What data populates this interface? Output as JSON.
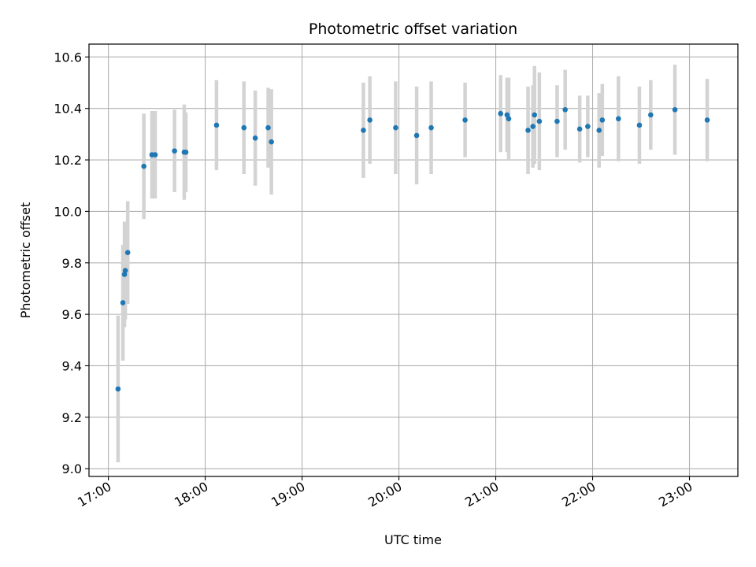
{
  "chart_data": {
    "type": "scatter",
    "title": "Photometric offset variation",
    "xlabel": "UTC time",
    "ylabel": "Photometric offset",
    "xlim": [
      "16:48",
      "23:30"
    ],
    "ylim": [
      8.97,
      10.65
    ],
    "x_ticks": [
      "17:00",
      "18:00",
      "19:00",
      "20:00",
      "21:00",
      "22:00",
      "23:00"
    ],
    "y_ticks": [
      "9.0",
      "9.2",
      "9.4",
      "9.6",
      "9.8",
      "10.0",
      "10.2",
      "10.4",
      "10.6"
    ],
    "grid": true,
    "error_bars": true,
    "colors": {
      "points": "#1f77b4",
      "error_bars": "#d3d3d3",
      "grid": "#b0b0b0"
    },
    "points": [
      {
        "x": "17:06",
        "y": 9.31,
        "err": 0.285
      },
      {
        "x": "17:09",
        "y": 9.645,
        "err": 0.225
      },
      {
        "x": "17:10",
        "y": 9.755,
        "err": 0.205
      },
      {
        "x": "17:10.5",
        "y": 9.77,
        "err": 0.19
      },
      {
        "x": "17:12",
        "y": 9.84,
        "err": 0.2
      },
      {
        "x": "17:22",
        "y": 10.175,
        "err": 0.205
      },
      {
        "x": "17:27",
        "y": 10.22,
        "err": 0.17
      },
      {
        "x": "17:29",
        "y": 10.22,
        "err": 0.17
      },
      {
        "x": "17:41",
        "y": 10.235,
        "err": 0.16
      },
      {
        "x": "17:47",
        "y": 10.23,
        "err": 0.185
      },
      {
        "x": "17:48",
        "y": 10.23,
        "err": 0.155
      },
      {
        "x": "18:07",
        "y": 10.335,
        "err": 0.175
      },
      {
        "x": "18:24",
        "y": 10.325,
        "err": 0.18
      },
      {
        "x": "18:31",
        "y": 10.285,
        "err": 0.185
      },
      {
        "x": "18:39",
        "y": 10.325,
        "err": 0.155
      },
      {
        "x": "18:41",
        "y": 10.27,
        "err": 0.205
      },
      {
        "x": "19:38",
        "y": 10.315,
        "err": 0.185
      },
      {
        "x": "19:42",
        "y": 10.355,
        "err": 0.17
      },
      {
        "x": "19:58",
        "y": 10.325,
        "err": 0.18
      },
      {
        "x": "20:11",
        "y": 10.295,
        "err": 0.19
      },
      {
        "x": "20:20",
        "y": 10.325,
        "err": 0.18
      },
      {
        "x": "20:41",
        "y": 10.355,
        "err": 0.145
      },
      {
        "x": "21:03",
        "y": 10.38,
        "err": 0.15
      },
      {
        "x": "21:07",
        "y": 10.375,
        "err": 0.145
      },
      {
        "x": "21:08",
        "y": 10.36,
        "err": 0.16
      },
      {
        "x": "21:20",
        "y": 10.315,
        "err": 0.17
      },
      {
        "x": "21:23",
        "y": 10.33,
        "err": 0.16
      },
      {
        "x": "21:24",
        "y": 10.375,
        "err": 0.19
      },
      {
        "x": "21:27",
        "y": 10.35,
        "err": 0.19
      },
      {
        "x": "21:38",
        "y": 10.35,
        "err": 0.14
      },
      {
        "x": "21:43",
        "y": 10.395,
        "err": 0.155
      },
      {
        "x": "21:52",
        "y": 10.32,
        "err": 0.13
      },
      {
        "x": "21:57",
        "y": 10.33,
        "err": 0.12
      },
      {
        "x": "22:04",
        "y": 10.315,
        "err": 0.145
      },
      {
        "x": "22:06",
        "y": 10.355,
        "err": 0.14
      },
      {
        "x": "22:16",
        "y": 10.36,
        "err": 0.165
      },
      {
        "x": "22:29",
        "y": 10.335,
        "err": 0.15
      },
      {
        "x": "22:36",
        "y": 10.375,
        "err": 0.135
      },
      {
        "x": "22:51",
        "y": 10.395,
        "err": 0.175
      },
      {
        "x": "23:11",
        "y": 10.355,
        "err": 0.16
      }
    ]
  }
}
